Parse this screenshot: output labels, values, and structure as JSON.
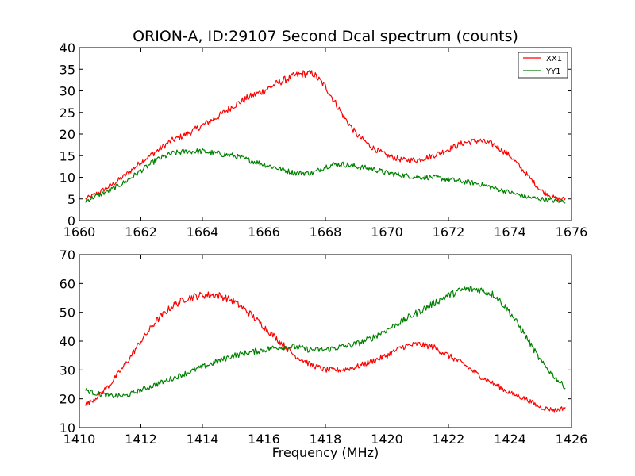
{
  "chart_data": [
    {
      "type": "line",
      "title": "ORION-A, ID:29107 Second Dcal spectrum (counts)",
      "xlabel": "",
      "ylabel": "",
      "xlim": [
        1660,
        1676
      ],
      "ylim": [
        0,
        40
      ],
      "xticks": [
        "1660",
        "1662",
        "1664",
        "1666",
        "1668",
        "1670",
        "1672",
        "1674",
        "1676"
      ],
      "yticks": [
        "0",
        "5",
        "10",
        "15",
        "20",
        "25",
        "30",
        "35",
        "40"
      ],
      "legend": "top-right",
      "x": [
        1660.2,
        1660.5,
        1661.0,
        1661.5,
        1662.0,
        1662.5,
        1663.0,
        1663.5,
        1664.0,
        1664.5,
        1665.0,
        1665.5,
        1666.0,
        1666.5,
        1667.0,
        1667.3,
        1667.6,
        1668.0,
        1668.3,
        1668.6,
        1669.0,
        1669.5,
        1670.0,
        1670.5,
        1671.0,
        1671.5,
        1672.0,
        1672.5,
        1673.0,
        1673.5,
        1674.0,
        1674.5,
        1675.0,
        1675.5,
        1675.8
      ],
      "series": [
        {
          "name": "XX1",
          "color": "#ff0000",
          "values": [
            5.0,
            6.0,
            8.0,
            10.5,
            13.5,
            16.0,
            18.5,
            20.0,
            22.0,
            24.0,
            26.5,
            28.5,
            30.0,
            32.0,
            33.5,
            34.0,
            34.0,
            31.0,
            27.5,
            24.0,
            20.0,
            17.0,
            15.0,
            14.0,
            14.0,
            15.0,
            16.5,
            18.0,
            18.5,
            17.5,
            15.0,
            11.0,
            7.0,
            5.0,
            5.0
          ]
        },
        {
          "name": "YY1",
          "color": "#008000",
          "values": [
            4.5,
            5.5,
            7.0,
            9.0,
            11.5,
            14.0,
            15.5,
            16.0,
            16.0,
            15.5,
            15.0,
            14.0,
            13.0,
            12.0,
            11.0,
            11.0,
            11.0,
            12.5,
            13.0,
            13.0,
            12.5,
            12.0,
            11.0,
            10.5,
            10.0,
            10.0,
            9.5,
            9.0,
            8.5,
            7.5,
            6.5,
            5.5,
            5.0,
            4.5,
            4.5
          ]
        }
      ]
    },
    {
      "type": "line",
      "title": "",
      "xlabel": "Frequency (MHz)",
      "ylabel": "",
      "xlim": [
        1410,
        1426
      ],
      "ylim": [
        10,
        70
      ],
      "xticks": [
        "1410",
        "1412",
        "1414",
        "1416",
        "1418",
        "1420",
        "1422",
        "1424",
        "1426"
      ],
      "yticks": [
        "10",
        "20",
        "30",
        "40",
        "50",
        "60",
        "70"
      ],
      "x": [
        1410.2,
        1410.5,
        1411.0,
        1411.5,
        1412.0,
        1412.5,
        1413.0,
        1413.5,
        1414.0,
        1414.5,
        1415.0,
        1415.5,
        1416.0,
        1416.5,
        1417.0,
        1417.5,
        1418.0,
        1418.5,
        1419.0,
        1419.5,
        1420.0,
        1420.5,
        1421.0,
        1421.5,
        1422.0,
        1422.5,
        1423.0,
        1423.5,
        1424.0,
        1424.5,
        1425.0,
        1425.5,
        1425.8
      ],
      "series": [
        {
          "name": "XX1",
          "color": "#ff0000",
          "values": [
            18,
            20,
            25,
            32,
            40,
            47,
            52,
            55,
            56,
            56,
            54,
            50,
            45,
            40,
            35,
            32,
            30,
            30,
            31,
            33,
            35,
            38,
            39,
            38,
            35,
            32,
            28,
            25,
            22,
            20,
            17,
            16,
            17
          ]
        },
        {
          "name": "YY1",
          "color": "#008000",
          "values": [
            23,
            22,
            21,
            21,
            23,
            25,
            27,
            29,
            31,
            33,
            35,
            36,
            37,
            38,
            38,
            37,
            37,
            38,
            39,
            41,
            44,
            47,
            50,
            53,
            56,
            58,
            58,
            56,
            50,
            42,
            33,
            27,
            24
          ]
        }
      ]
    }
  ]
}
